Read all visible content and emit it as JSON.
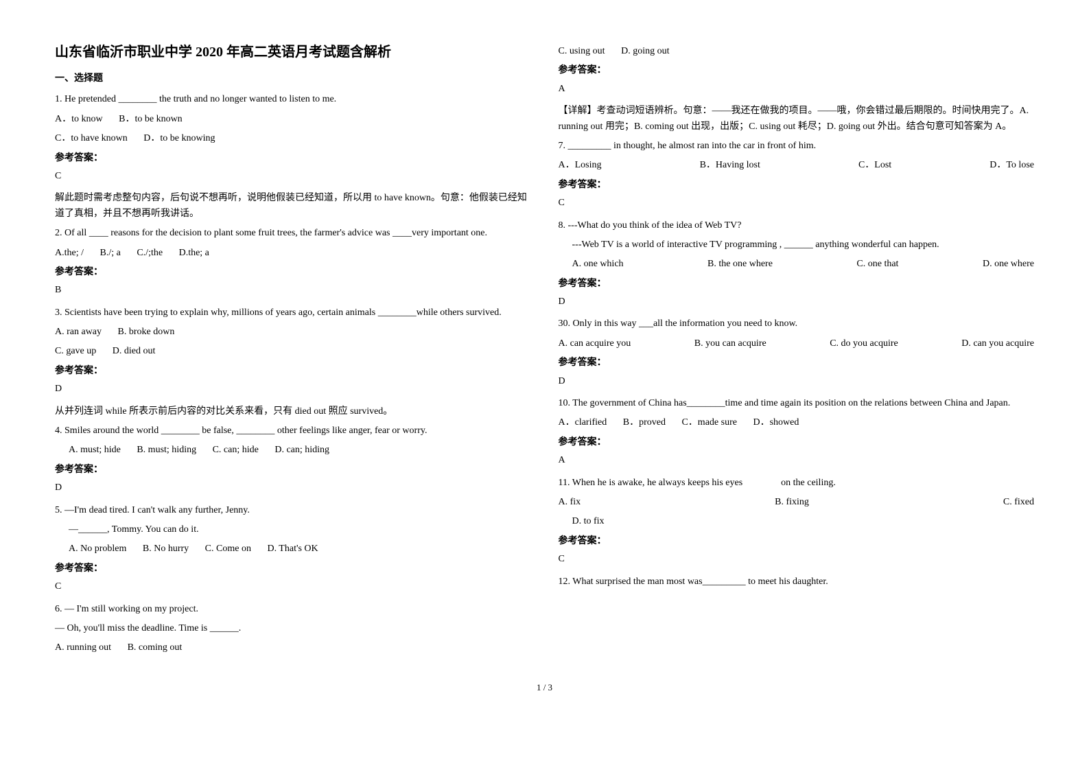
{
  "title": "山东省临沂市职业中学 2020 年高二英语月考试题含解析",
  "section1": "一、选择题",
  "ansLabel": "参考答案：",
  "left": {
    "q1": {
      "stem": "1. He pretended ________ the truth and no longer wanted to listen to me.",
      "a": "A．to know",
      "b": "B．to be known",
      "c": "C．to have known",
      "d": "D．to be knowing",
      "ans": "C",
      "exp": "解此题时需考虑整句内容，后句说不想再听，说明他假装已经知道，所以用 to have known。句意：他假装已经知道了真相，并且不想再听我讲话。"
    },
    "q2": {
      "stem": "2. Of all ____ reasons for the decision to plant some fruit trees, the farmer's advice was ____very important one.",
      "a": "A.the; /",
      "b": "B./; a",
      "c": "C./;the",
      "d": "D.the; a",
      "ans": "B"
    },
    "q3": {
      "stem": "3. Scientists have been trying to explain why, millions of years ago, certain animals ________while others survived.",
      "a": "A. ran away",
      "b": "B. broke down",
      "c": "C. gave up",
      "d": "D. died out",
      "ans": "D",
      "exp": "从并列连词 while 所表示前后内容的对比关系来看，只有 died out 照应 survived。"
    },
    "q4": {
      "stem": "4. Smiles around the world ________ be false, ________ other feelings like anger, fear or worry.",
      "a": "A. must; hide",
      "b": "B. must; hiding",
      "c": "C. can; hide",
      "d": "D. can; hiding",
      "ans": "D"
    },
    "q5": {
      "l1": "5. —I'm dead tired. I can't walk any further, Jenny.",
      "l2": "—______, Tommy. You can do it.",
      "a": "A. No problem",
      "b": "B. No hurry",
      "c": "C. Come on",
      "d": "D. That's OK",
      "ans": "C"
    },
    "q6": {
      "l1": "6. — I'm still working on my project.",
      "l2": "— Oh, you'll miss the deadline. Time is ______.",
      "a": "A. running out",
      "b": "B. coming out"
    }
  },
  "right": {
    "q6cont": {
      "c": "C. using out",
      "d": "D. going out",
      "ans": "A",
      "exp": "【详解】考查动词短语辨析。句意：——我还在做我的项目。——哦，你会错过最后期限的。时间快用完了。A. running out 用完；B. coming out 出现，出版；C. using out 耗尽；D. going out 外出。结合句意可知答案为 A。"
    },
    "q7": {
      "stem": "7. _________ in thought, he almost ran into the car in front of him.",
      "a": "A．Losing",
      "b": "B．Having lost",
      "c": "C．Lost",
      "d": "D．To lose",
      "ans": "C"
    },
    "q8": {
      "l1": "8. ---What do you think of the idea of Web TV?",
      "l2": "---Web TV is a world of interactive TV programming , ______ anything wonderful can happen.",
      "a": "A. one which",
      "b": "B. the one where",
      "c": "C. one that",
      "d": "D. one where",
      "ans": "D"
    },
    "q30": {
      "stem": "30. Only in this way ___all the information you need to know.",
      "a": "A. can acquire you",
      "b": "B. you can acquire",
      "c": "C. do you acquire",
      "d": "D. can you acquire",
      "ans": "D"
    },
    "q10": {
      "stem": "10. The government of China has________time and time again its position on the relations between China and Japan.",
      "a": "A．clarified",
      "b": "B．proved",
      "c": "C．made sure",
      "d": "D．showed",
      "ans": "A"
    },
    "q11": {
      "stem": "11. When he is awake, he always keeps his eyes　　　　on the ceiling.",
      "a": "A. fix",
      "b": "B. fixing",
      "c": "C. fixed",
      "d": "D. to fix",
      "ans": "C"
    },
    "q12": {
      "stem": "12. What surprised the man most was_________ to meet his daughter."
    }
  },
  "pagenum": "1 / 3"
}
